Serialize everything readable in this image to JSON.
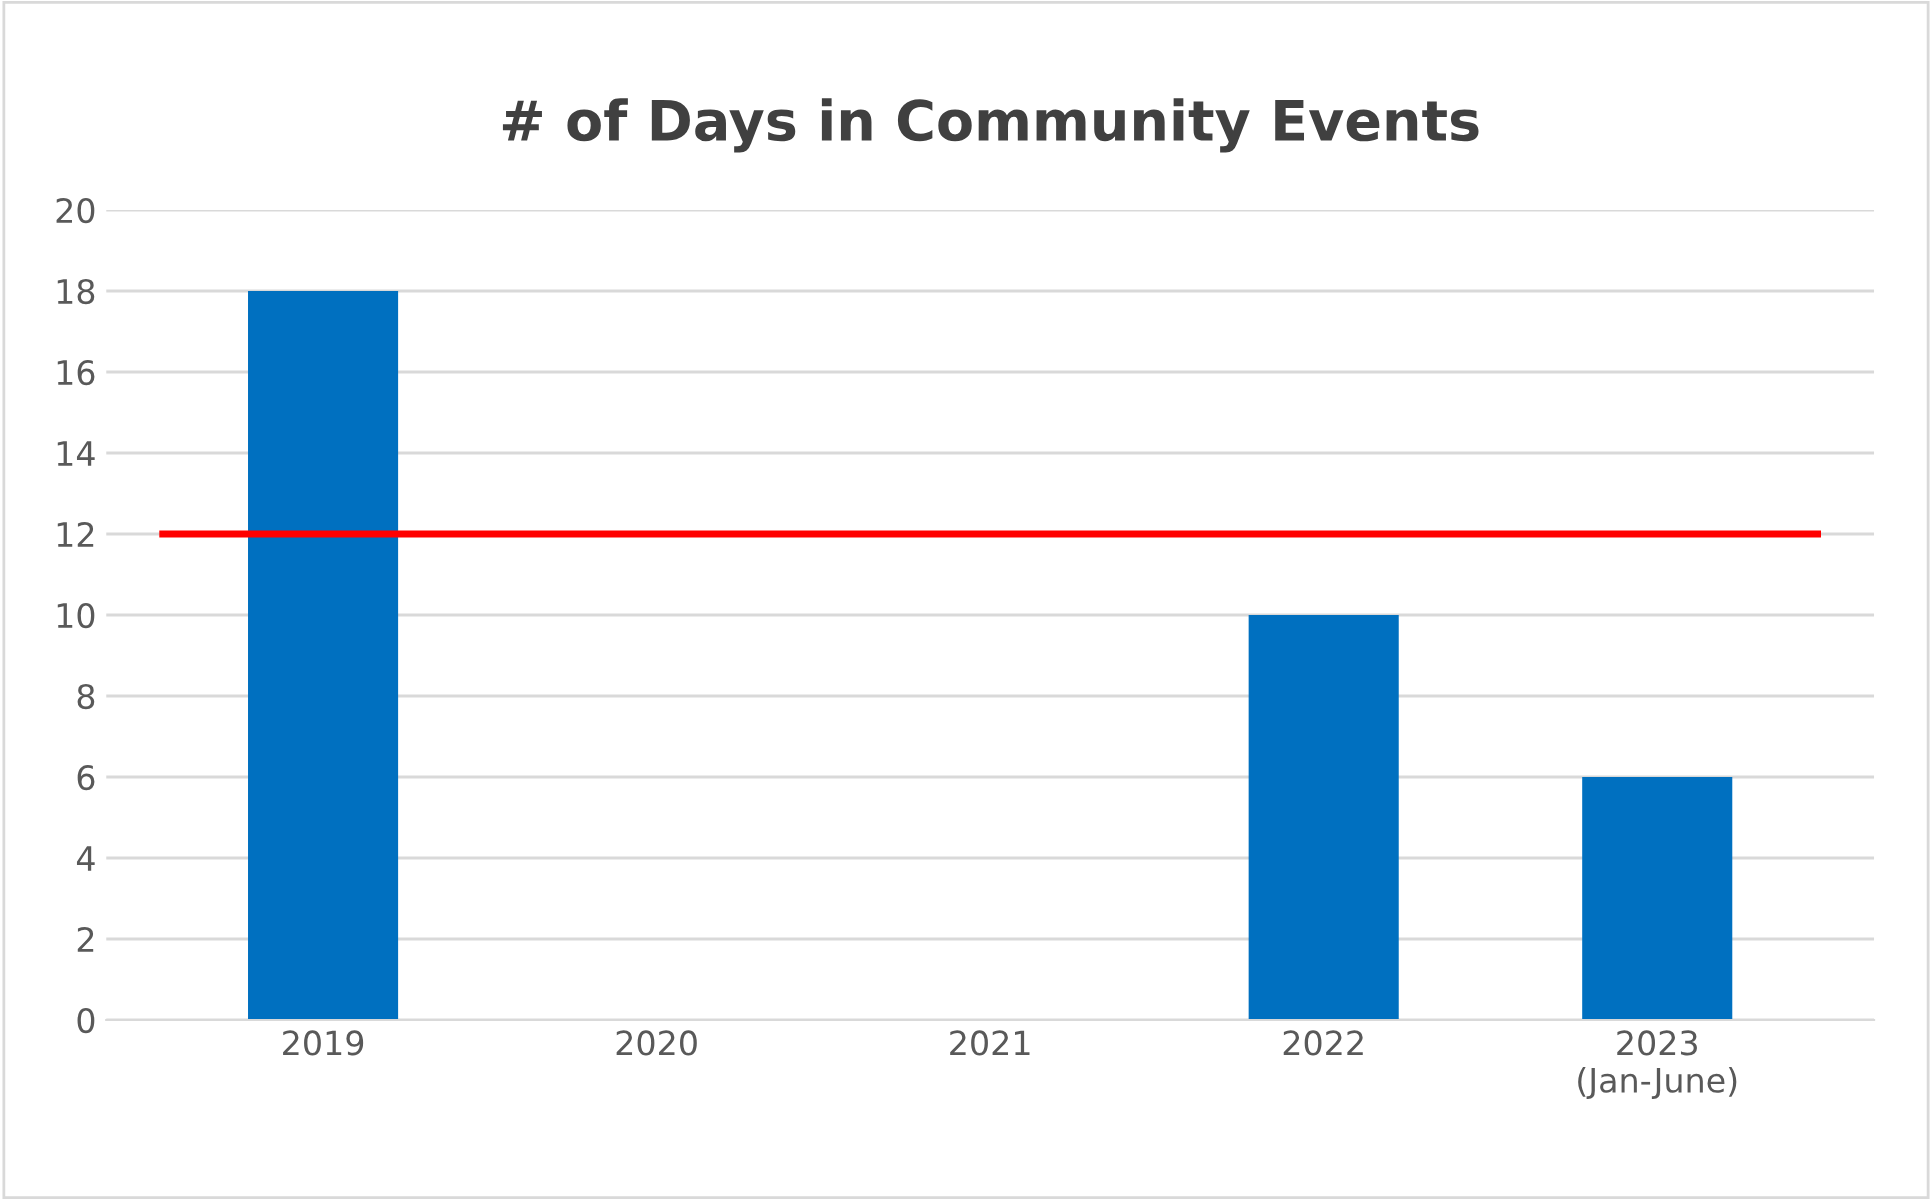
{
  "chart_data": {
    "type": "bar",
    "title": "# of Days in Community Events",
    "categories": [
      "2019",
      "2020",
      "2021",
      "2022",
      "2023\n(Jan-June)"
    ],
    "values": [
      18,
      null,
      null,
      10,
      6
    ],
    "color": "#0070c0",
    "ylim": [
      0,
      20
    ],
    "yticks": [
      0,
      2,
      4,
      6,
      8,
      10,
      12,
      14,
      16,
      18,
      20
    ],
    "grid": "y",
    "ref_lines": [
      {
        "axis": "y",
        "value": 12,
        "color": "#ff0000",
        "line_style": "solid"
      }
    ]
  }
}
